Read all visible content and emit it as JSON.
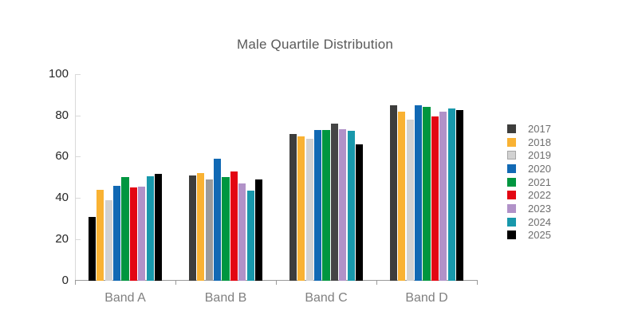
{
  "title": "Male Quartile Distribution",
  "chart_data": {
    "type": "bar",
    "title": "Male Quartile Distribution",
    "categories": [
      "Band A",
      "Band B",
      "Band C",
      "Band D"
    ],
    "series": [
      {
        "name": "2017",
        "color": "#3d3d3c",
        "values": [
          31,
          51,
          71,
          85
        ]
      },
      {
        "name": "2018",
        "color": "#f9b233",
        "values": [
          44,
          52,
          70,
          82
        ]
      },
      {
        "name": "2019",
        "color": "#d2d2d2",
        "swatch_border": "#a6a6a6",
        "values": [
          39,
          49,
          68.5,
          78
        ]
      },
      {
        "name": "2020",
        "color": "#1169b4",
        "values": [
          46,
          59,
          73,
          85
        ]
      },
      {
        "name": "2021",
        "color": "#009640",
        "values": [
          50,
          50,
          73,
          84
        ]
      },
      {
        "name": "2022",
        "color": "#e30613",
        "values": [
          45,
          53,
          76,
          79.5
        ]
      },
      {
        "name": "2023",
        "color": "#b192c8",
        "values": [
          45.5,
          47,
          73.5,
          82
        ]
      },
      {
        "name": "2024",
        "color": "#1898ab",
        "values": [
          50.5,
          43.5,
          72.5,
          83.5
        ]
      },
      {
        "name": "2025",
        "color": "#000000",
        "values": [
          51.5,
          49,
          66,
          82.5
        ]
      }
    ],
    "color_overrides": [
      {
        "series": "2017",
        "category": "Band A",
        "color": "#000000"
      },
      {
        "series": "2019",
        "category": "Band B",
        "color": "#9b9b9b"
      },
      {
        "series": "2022",
        "category": "Band C",
        "color": "#454545"
      }
    ],
    "xlabel": "",
    "ylabel": "",
    "ylim": [
      0,
      100
    ],
    "yticks": [
      0,
      20,
      40,
      60,
      80,
      100
    ],
    "grid": false,
    "legend_position": "right",
    "legend_items": [
      "2017",
      "2018",
      "2019",
      "2020",
      "2021",
      "2022",
      "2023",
      "2024",
      "2025"
    ]
  }
}
